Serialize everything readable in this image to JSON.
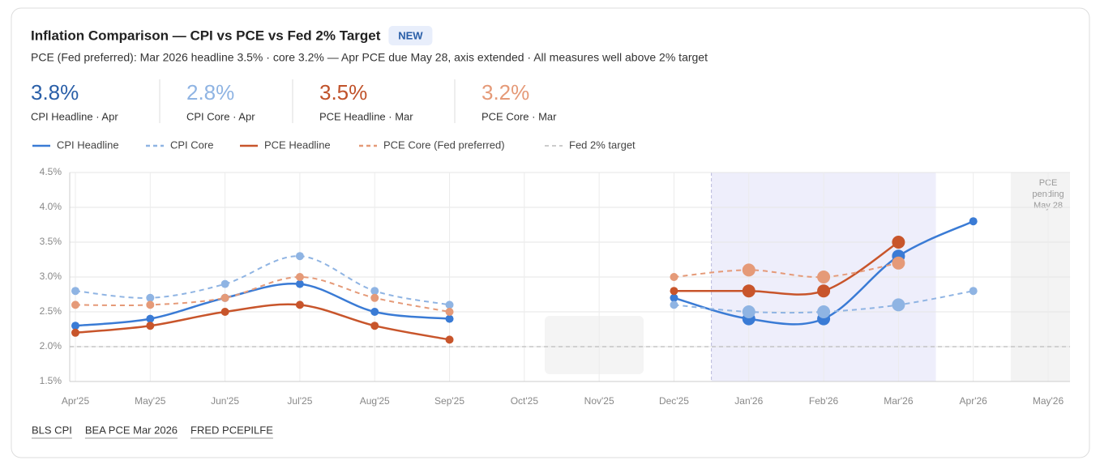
{
  "header": {
    "title": "Inflation Comparison — CPI vs PCE vs Fed 2% Target",
    "badge": "NEW",
    "subtitle": "PCE (Fed preferred): Mar 2026 headline 3.5% · core 3.2% — Apr PCE due May 28, axis extended · All measures well above 2% target"
  },
  "kpis": [
    {
      "value": "3.8%",
      "label": "CPI Headline · Apr",
      "color": "#2a5fa8"
    },
    {
      "value": "2.8%",
      "label": "CPI Core · Apr",
      "color": "#8fb4e3"
    },
    {
      "value": "3.5%",
      "label": "PCE Headline · Mar",
      "color": "#c0522a"
    },
    {
      "value": "3.2%",
      "label": "PCE Core · Mar",
      "color": "#e59a78"
    }
  ],
  "chart_data": {
    "type": "line",
    "categories": [
      "Apr'25",
      "May'25",
      "Jun'25",
      "Jul'25",
      "Aug'25",
      "Sep'25",
      "Oct'25",
      "Nov'25",
      "Dec'25",
      "Jan'26",
      "Feb'26",
      "Mar'26",
      "Apr'26",
      "May'26"
    ],
    "series": [
      {
        "name": "CPI Headline",
        "color": "#3a7bd5",
        "dashed": false,
        "values": [
          2.3,
          2.4,
          2.7,
          2.9,
          2.5,
          2.4,
          null,
          null,
          2.7,
          2.4,
          2.4,
          3.3,
          3.8,
          null
        ]
      },
      {
        "name": "CPI Core",
        "color": "#8fb4e3",
        "dashed": true,
        "values": [
          2.8,
          2.7,
          2.9,
          3.3,
          2.8,
          2.6,
          null,
          null,
          2.6,
          2.5,
          2.5,
          2.6,
          2.8,
          null
        ]
      },
      {
        "name": "PCE Headline",
        "color": "#c8552b",
        "dashed": false,
        "values": [
          2.2,
          2.3,
          2.5,
          2.6,
          2.3,
          2.1,
          null,
          null,
          2.8,
          2.8,
          2.8,
          3.5,
          null,
          null
        ]
      },
      {
        "name": "PCE Core (Fed preferred)",
        "color": "#e59a78",
        "dashed": true,
        "values": [
          2.6,
          2.6,
          2.7,
          3.0,
          2.7,
          2.5,
          null,
          null,
          3.0,
          3.1,
          3.0,
          3.2,
          null,
          null
        ]
      }
    ],
    "reference_line": {
      "name": "Fed 2% target",
      "value": 2,
      "color": "#bbbbbb"
    },
    "annotation": [
      "PCE",
      "pending",
      "May 28"
    ],
    "ylim": [
      1.5,
      4.5
    ],
    "yticks": [
      {
        "value": 1.5,
        "label": "1.5%"
      },
      {
        "value": 2,
        "label": "2.0%"
      },
      {
        "value": 2.5,
        "label": "2.5%"
      },
      {
        "value": 3,
        "label": "3.0%"
      },
      {
        "value": 3.5,
        "label": "3.5%"
      },
      {
        "value": 4,
        "label": "4.0%"
      },
      {
        "value": 4.5,
        "label": "4.5%"
      }
    ],
    "grid": true,
    "legend": "top"
  },
  "sources": [
    "BLS CPI",
    "BEA PCE Mar 2026",
    "FRED PCEPILFE"
  ]
}
